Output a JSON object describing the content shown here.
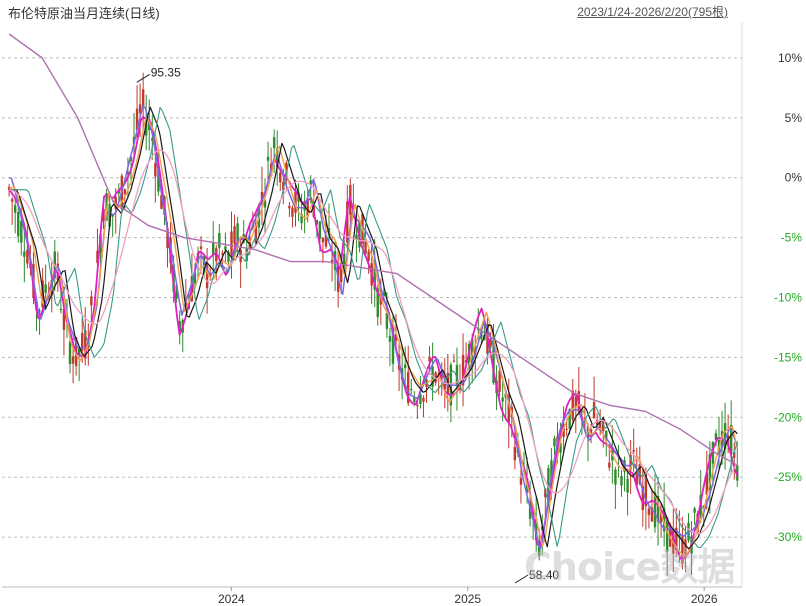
{
  "title": "布伦特原油当月连续(日线)",
  "date_range": "2023/1/24-2026/2/20(795根)",
  "watermark": "Choice数据",
  "colors": {
    "up_label": "#22aa22",
    "down_label": "#333333",
    "candle_up": "#c0392b",
    "candle_down": "#2e8b2e",
    "ma_black": "#1a1a1a",
    "ma_magenta": "#e020c0",
    "ma_blue": "#7a6ae0",
    "ma_orange": "#f0a050",
    "ma_teal": "#3a9a8a",
    "ma_pink": "#f0a0c0",
    "ma_purple": "#b070b0"
  },
  "chart_data": {
    "type": "line",
    "ylabel": "",
    "xlabel": "",
    "y_unit": "percent",
    "ylim": [
      -34,
      13
    ],
    "grid": true,
    "x_ticks": [
      {
        "label": "2024",
        "x": 2024.0
      },
      {
        "label": "2025",
        "x": 2025.0
      },
      {
        "label": "2026",
        "x": 2026.0
      }
    ],
    "y_ticks": [
      {
        "label": "10%",
        "value": 10
      },
      {
        "label": "5%",
        "value": 5
      },
      {
        "label": "0%",
        "value": 0
      },
      {
        "label": "-5%",
        "value": -5
      },
      {
        "label": "-10%",
        "value": -10
      },
      {
        "label": "-15%",
        "value": -15
      },
      {
        "label": "-20%",
        "value": -20
      },
      {
        "label": "-25%",
        "value": -25
      },
      {
        "label": "-30%",
        "value": -30
      }
    ],
    "annotations": [
      {
        "text": "95.35",
        "x": 2023.6,
        "y": 8.3
      },
      {
        "text": "58.40",
        "x": 2025.2,
        "y": -33.5
      }
    ],
    "series": [
      {
        "key": "price",
        "x": [
          2023.06,
          2023.1,
          2023.14,
          2023.18,
          2023.22,
          2023.26,
          2023.3,
          2023.34,
          2023.38,
          2023.42,
          2023.46,
          2023.5,
          2023.54,
          2023.58,
          2023.62,
          2023.66,
          2023.7,
          2023.74,
          2023.78,
          2023.82,
          2023.86,
          2023.9,
          2023.94,
          2023.98,
          2024.02,
          2024.06,
          2024.1,
          2024.14,
          2024.18,
          2024.22,
          2024.26,
          2024.3,
          2024.34,
          2024.38,
          2024.42,
          2024.46,
          2024.5,
          2024.54,
          2024.58,
          2024.62,
          2024.66,
          2024.7,
          2024.74,
          2024.78,
          2024.82,
          2024.86,
          2024.9,
          2024.94,
          2024.98,
          2025.02,
          2025.06,
          2025.1,
          2025.14,
          2025.18,
          2025.22,
          2025.26,
          2025.3,
          2025.34,
          2025.38,
          2025.42,
          2025.46,
          2025.5,
          2025.54,
          2025.58,
          2025.62,
          2025.66,
          2025.7,
          2025.74,
          2025.78,
          2025.82,
          2025.86,
          2025.9,
          2025.94,
          2025.98,
          2026.02,
          2026.06,
          2026.1,
          2026.14
        ],
        "values": [
          -1,
          -3.5,
          -6,
          -11,
          -9,
          -7.5,
          -13,
          -15,
          -14,
          -10,
          -2,
          -3,
          -1,
          2,
          6,
          4,
          -1,
          -6,
          -12,
          -10,
          -7,
          -8,
          -6,
          -7,
          -5,
          -6,
          -4,
          -1,
          3,
          0.5,
          -2,
          -3,
          -1,
          -5,
          -6,
          -9,
          -2,
          -4,
          -6,
          -10,
          -12,
          -15,
          -17,
          -18,
          -17,
          -16,
          -18,
          -17,
          -16,
          -14,
          -12,
          -15,
          -18,
          -20,
          -24,
          -27,
          -31,
          -26,
          -22,
          -20,
          -19,
          -21,
          -20,
          -22,
          -24,
          -25,
          -24,
          -26,
          -27,
          -29,
          -30,
          -31,
          -30,
          -28,
          -25,
          -22,
          -21,
          -24
        ]
      },
      {
        "key": "ma_long",
        "x": [
          2023.06,
          2023.2,
          2023.35,
          2023.5,
          2023.65,
          2023.8,
          2023.95,
          2024.1,
          2024.25,
          2024.4,
          2024.55,
          2024.7,
          2024.85,
          2025.0,
          2025.15,
          2025.3,
          2025.45,
          2025.6,
          2025.75,
          2025.9,
          2026.05,
          2026.14
        ],
        "values": [
          12,
          10,
          5,
          -2,
          -4,
          -5,
          -5.5,
          -6,
          -7,
          -7,
          -7.5,
          -8,
          -10,
          -12,
          -14,
          -16,
          -18,
          -19,
          -19.5,
          -21,
          -23,
          -24
        ]
      }
    ]
  }
}
